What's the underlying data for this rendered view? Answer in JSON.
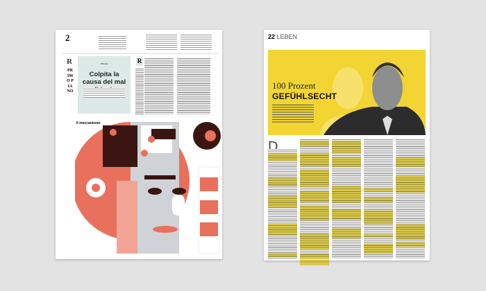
{
  "left_page": {
    "page_number": "2",
    "logo": "R",
    "section": "PRIMO PIANO",
    "kicker": "Ricerca",
    "headline": "Colpita la causa del mal di testa",
    "dropcap": "R",
    "infographic": {
      "title": "Il meccanismo",
      "colors": {
        "coral": "#e8705c",
        "dark": "#3a1512",
        "light_coral": "#f2a596",
        "gray": "#cfd2d6",
        "teal_box": "#dde9e6"
      }
    }
  },
  "right_page": {
    "page_number": "22",
    "section": "LEBEN",
    "headline_line1": "100 Prozent",
    "headline_line2": "GEFÜHLSECHT",
    "dropcap": "D",
    "colors": {
      "banner": "#f2d533",
      "highlight": "#f2dc3a"
    }
  }
}
